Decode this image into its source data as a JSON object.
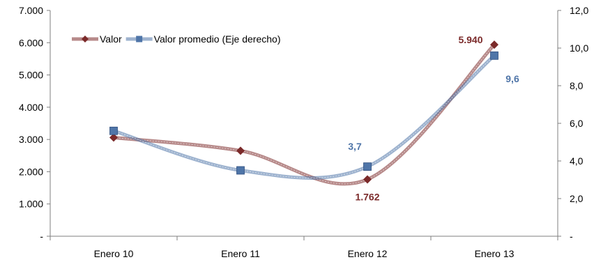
{
  "chart_data": {
    "type": "line",
    "categories": [
      "Enero 10",
      "Enero 11",
      "Enero 12",
      "Enero 13"
    ],
    "series": [
      {
        "name": "Valor",
        "axis": "left",
        "values": [
          3060,
          2650,
          1762,
          5940
        ],
        "color": "#7b2a2a",
        "marker": "diamond"
      },
      {
        "name": "Valor promedio (Eje derecho)",
        "axis": "right",
        "values": [
          5.6,
          3.5,
          3.7,
          9.6
        ],
        "color": "#4f75a8",
        "marker": "square"
      }
    ],
    "left_axis": {
      "min": 0,
      "max": 7000,
      "ticks": [
        0,
        1000,
        2000,
        3000,
        4000,
        5000,
        6000,
        7000
      ],
      "tick_labels": [
        "-",
        "1.000",
        "2.000",
        "3.000",
        "4.000",
        "5.000",
        "6.000",
        "7.000"
      ]
    },
    "right_axis": {
      "min": 0,
      "max": 12,
      "ticks": [
        0,
        2,
        4,
        6,
        8,
        10,
        12
      ],
      "tick_labels": [
        "-",
        "2,0",
        "4,0",
        "6,0",
        "8,0",
        "10,0",
        "12,0"
      ]
    },
    "data_labels": [
      {
        "series": 0,
        "index": 2,
        "text": "1.762",
        "position": "below",
        "color": "#7b2a2a"
      },
      {
        "series": 0,
        "index": 3,
        "text": "5.940",
        "position": "left",
        "color": "#7b2a2a"
      },
      {
        "series": 1,
        "index": 2,
        "text": "3,7",
        "position": "above-left",
        "color": "#4f75a8"
      },
      {
        "series": 1,
        "index": 3,
        "text": "9,6",
        "position": "below-right",
        "color": "#4f75a8"
      }
    ],
    "legend": {
      "position": "top-left",
      "inside": true
    },
    "grid": false,
    "smooth": true
  }
}
